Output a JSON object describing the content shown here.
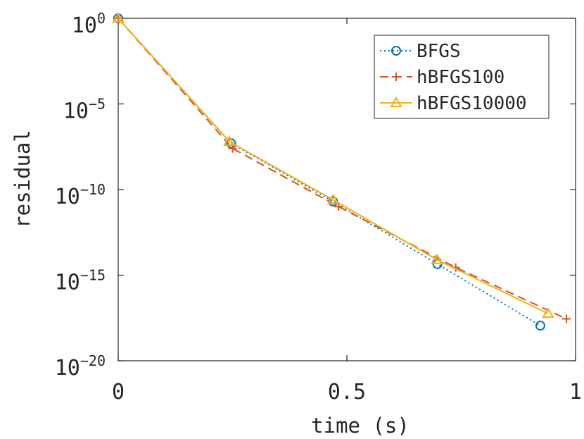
{
  "chart_data": {
    "type": "line",
    "title": "",
    "xlabel": "time (s)",
    "ylabel": "residual",
    "xlim": [
      0,
      1
    ],
    "ylim_log10": [
      -20,
      0
    ],
    "yscale": "log",
    "grid": false,
    "legend_position": "top-right",
    "x_ticks": [
      {
        "value": 0,
        "label": "0"
      },
      {
        "value": 0.5,
        "label": "0.5"
      },
      {
        "value": 1,
        "label": "1"
      }
    ],
    "y_ticks": [
      {
        "exp": 0,
        "base": "10",
        "power": "0"
      },
      {
        "exp": -5,
        "base": "10",
        "power": "−5"
      },
      {
        "exp": -10,
        "base": "10",
        "power": "−10"
      },
      {
        "exp": -15,
        "base": "10",
        "power": "−15"
      },
      {
        "exp": -20,
        "base": "10",
        "power": "−20"
      }
    ],
    "series": [
      {
        "name": "BFGS",
        "color": "#0072BD",
        "line": "dotted",
        "marker": "circle",
        "x": [
          0.0,
          0.247,
          0.47,
          0.698,
          0.923
        ],
        "y_log10": [
          0.0,
          -7.3,
          -10.7,
          -14.35,
          -17.95
        ]
      },
      {
        "name": "hBFGS100",
        "color": "#D95319",
        "line": "dashed",
        "marker": "plus",
        "x": [
          0.0,
          0.25,
          0.482,
          0.738,
          0.98
        ],
        "y_log10": [
          0.0,
          -7.6,
          -11.0,
          -14.55,
          -17.55
        ]
      },
      {
        "name": "hBFGS10000",
        "color": "#EDB120",
        "line": "solid",
        "marker": "triangle",
        "x": [
          0.0,
          0.243,
          0.47,
          0.697,
          0.94
        ],
        "y_log10": [
          0.0,
          -7.2,
          -10.6,
          -14.1,
          -17.25
        ]
      }
    ]
  }
}
